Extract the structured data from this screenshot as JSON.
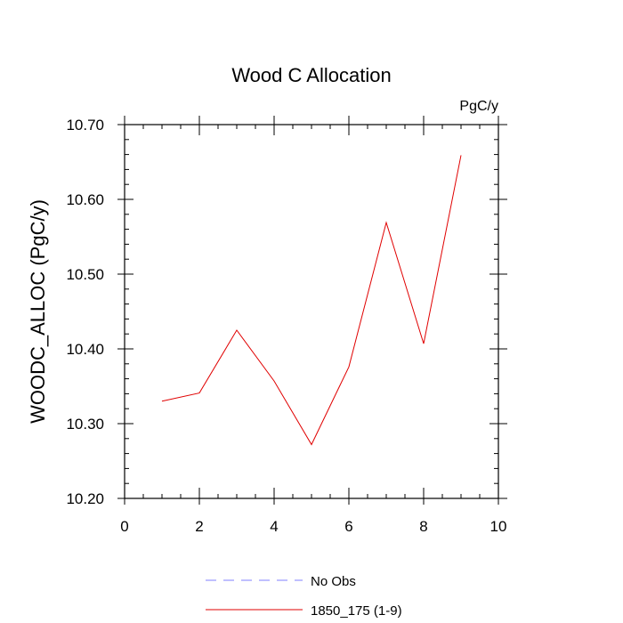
{
  "chart_data": {
    "type": "line",
    "title": "Wood C Allocation",
    "units": "PgC/y",
    "xlabel": "",
    "ylabel": "WOODC_ALLOC  (PgC/y)",
    "xlim": [
      0,
      10
    ],
    "ylim": [
      10.2,
      10.7
    ],
    "xticks": [
      0,
      2,
      4,
      6,
      8,
      10
    ],
    "xtick_labels": [
      "0",
      "2",
      "4",
      "6",
      "8",
      "10"
    ],
    "yticks": [
      10.2,
      10.3,
      10.4,
      10.5,
      10.6,
      10.7
    ],
    "ytick_labels": [
      "10.20",
      "10.30",
      "10.40",
      "10.50",
      "10.60",
      "10.70"
    ],
    "grid": false,
    "legend_position": "bottom",
    "series": [
      {
        "name": "No Obs",
        "color": "#8080ff",
        "dash": "dashed",
        "x": [],
        "y": []
      },
      {
        "name": "1850_175 (1-9)",
        "color": "#e00000",
        "dash": "solid",
        "x": [
          1,
          2,
          3,
          4,
          5,
          6,
          7,
          8,
          9
        ],
        "y": [
          10.33,
          10.341,
          10.425,
          10.357,
          10.272,
          10.376,
          10.569,
          10.407,
          10.659
        ]
      }
    ]
  }
}
